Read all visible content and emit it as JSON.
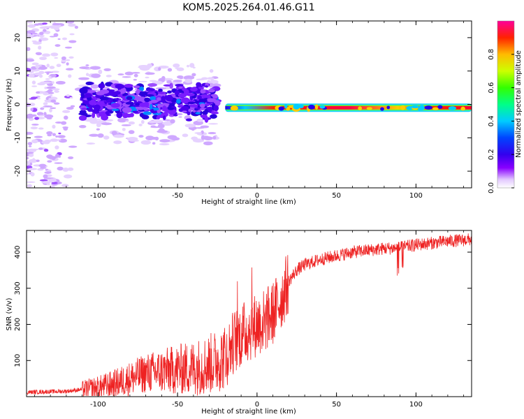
{
  "title": "KOM5.2025.264.01.46.G11",
  "colorbar": {
    "label": "Normalized spectral amplitude",
    "ticks": [
      0.0,
      0.2,
      0.4,
      0.6,
      0.8
    ],
    "tick_labels": [
      "0.0",
      "0.2",
      "0.4",
      "0.6",
      "0.8"
    ],
    "range": [
      0,
      1
    ]
  },
  "chart_data": [
    {
      "type": "heatmap",
      "name": "spectrogram",
      "xlabel": "Height of straight line (km)",
      "ylabel": "Frequency (Hz)",
      "xlim": [
        -145,
        135
      ],
      "ylim": [
        -25,
        25
      ],
      "xticks": [
        -100,
        -50,
        0,
        50,
        100
      ],
      "xtick_labels": [
        "-100",
        "-50",
        "0",
        "50",
        "100"
      ],
      "yticks": [
        -20,
        -10,
        0,
        10,
        20
      ],
      "ytick_labels": [
        "-20",
        "-10",
        "0",
        "10",
        "20"
      ],
      "regions": [
        {
          "x_range": [
            -145,
            -110
          ],
          "freq_range": [
            -25,
            25
          ],
          "amplitude": 0.05,
          "description": "sparse low-amplitude noise"
        },
        {
          "x_range": [
            -110,
            -25
          ],
          "freq_range": [
            -5,
            7
          ],
          "amplitude": 0.2,
          "description": "blob cluster"
        },
        {
          "x_range": [
            -20,
            135
          ],
          "freq_center": -1,
          "amplitude": 0.8,
          "description": "narrow carrier line"
        }
      ]
    },
    {
      "type": "line",
      "name": "snr",
      "xlabel": "Height of straight line (km)",
      "ylabel": "SNR (v/v)",
      "xlim": [
        -145,
        135
      ],
      "ylim": [
        0,
        460
      ],
      "xticks": [
        -100,
        -50,
        0,
        50,
        100
      ],
      "xtick_labels": [
        "-100",
        "-50",
        "0",
        "50",
        "100"
      ],
      "yticks": [
        100,
        200,
        300,
        400
      ],
      "ytick_labels": [
        "100",
        "200",
        "300",
        "400"
      ],
      "color": "#ee2222",
      "series": [
        {
          "name": "SNR",
          "x": [
            -145,
            -130,
            -120,
            -110,
            -100,
            -90,
            -80,
            -70,
            -60,
            -50,
            -40,
            -30,
            -20,
            -15,
            -10,
            -5,
            0,
            5,
            10,
            15,
            20,
            25,
            30,
            40,
            50,
            60,
            70,
            80,
            90,
            100,
            110,
            120,
            135
          ],
          "values": [
            12,
            14,
            15,
            20,
            25,
            35,
            50,
            65,
            70,
            75,
            80,
            90,
            110,
            150,
            170,
            185,
            200,
            210,
            230,
            270,
            320,
            350,
            365,
            380,
            390,
            400,
            405,
            410,
            412,
            420,
            425,
            430,
            435
          ]
        }
      ]
    }
  ]
}
